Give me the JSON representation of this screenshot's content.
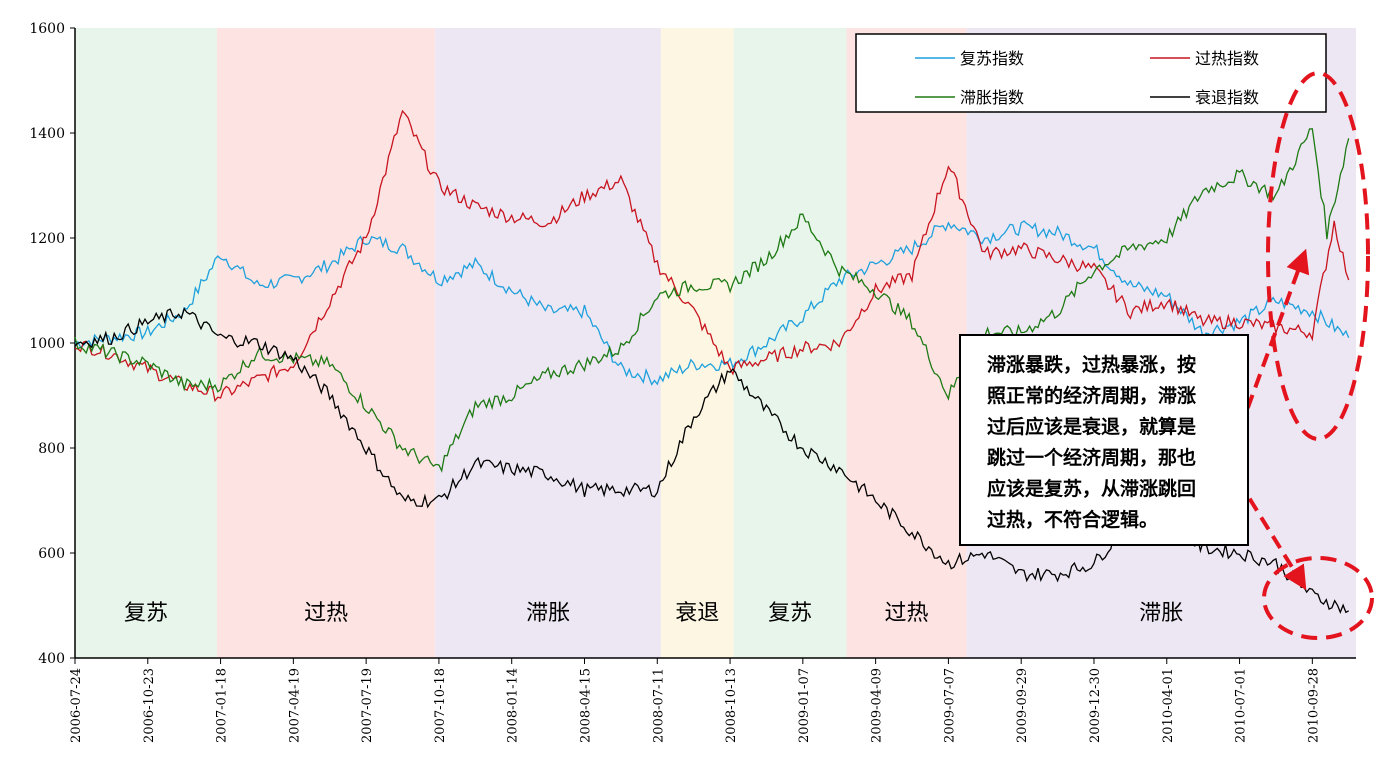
{
  "chart_data": {
    "type": "line",
    "title": "",
    "xlabel": "",
    "ylabel": "",
    "ylim": [
      400,
      1600
    ],
    "yticks": [
      400,
      600,
      800,
      1000,
      1200,
      1400,
      1600
    ],
    "xticks": [
      "2006-07-24",
      "2006-10-23",
      "2007-01-18",
      "2007-04-19",
      "2007-07-19",
      "2007-10-18",
      "2008-01-14",
      "2008-04-15",
      "2008-07-11",
      "2008-10-13",
      "2009-01-07",
      "2009-04-09",
      "2009-07-07",
      "2009-09-29",
      "2009-12-30",
      "2010-04-01",
      "2010-07-01",
      "2010-09-28"
    ],
    "legend": {
      "placement": "top-right",
      "entries": [
        "复苏指数",
        "过热指数",
        "滞胀指数",
        "衰退指数"
      ]
    },
    "phases": [
      {
        "label": "复苏",
        "start": 0,
        "end": 1.95,
        "color": "#e7f5ea"
      },
      {
        "label": "过热",
        "start": 1.95,
        "end": 4.95,
        "color": "#fde4e3"
      },
      {
        "label": "滞胀",
        "start": 4.95,
        "end": 8.05,
        "color": "#ede7f3"
      },
      {
        "label": "衰退",
        "start": 8.05,
        "end": 9.05,
        "color": "#fdf6e2"
      },
      {
        "label": "复苏",
        "start": 9.05,
        "end": 10.6,
        "color": "#e7f5ea"
      },
      {
        "label": "过热",
        "start": 10.6,
        "end": 12.25,
        "color": "#fde4e3"
      },
      {
        "label": "滞胀",
        "start": 12.25,
        "end": 17.6,
        "color": "#ede7f3"
      }
    ],
    "series": [
      {
        "name": "复苏指数",
        "color": "#1ea0dc",
        "x": [
          0,
          0.5,
          1,
          1.5,
          2,
          2.5,
          3,
          3.5,
          4,
          4.5,
          5,
          5.5,
          6,
          6.5,
          7,
          7.5,
          8,
          8.5,
          9,
          9.5,
          10,
          10.5,
          11,
          11.5,
          12,
          12.5,
          13,
          13.5,
          14,
          14.5,
          15,
          15.5,
          16,
          16.5,
          17,
          17.5
        ],
        "values": [
          1000,
          1010,
          1020,
          1060,
          1170,
          1110,
          1120,
          1150,
          1200,
          1180,
          1120,
          1150,
          1100,
          1060,
          1060,
          950,
          930,
          960,
          960,
          1000,
          1050,
          1120,
          1150,
          1180,
          1230,
          1200,
          1220,
          1210,
          1180,
          1110,
          1090,
          1020,
          1040,
          1080,
          1060,
          1010
        ]
      },
      {
        "name": "过热指数",
        "color": "#c8141e",
        "x": [
          0,
          0.5,
          1,
          1.5,
          2,
          2.5,
          3,
          3.5,
          4,
          4.5,
          5,
          5.5,
          6,
          6.5,
          7,
          7.5,
          8,
          8.5,
          9,
          9.5,
          10,
          10.5,
          11,
          11.5,
          12,
          12.5,
          13,
          13.5,
          14,
          14.5,
          15,
          15.5,
          16,
          16.5,
          17,
          17.3,
          17.5
        ],
        "values": [
          1000,
          980,
          950,
          920,
          900,
          930,
          960,
          1080,
          1200,
          1440,
          1300,
          1260,
          1240,
          1230,
          1280,
          1310,
          1150,
          1060,
          950,
          970,
          990,
          1000,
          1100,
          1130,
          1340,
          1170,
          1180,
          1160,
          1140,
          1060,
          1080,
          1040,
          1040,
          1030,
          1020,
          1230,
          1120
        ]
      },
      {
        "name": "滞胀指数",
        "color": "#1e7a14",
        "x": [
          0,
          0.5,
          1,
          1.5,
          2,
          2.5,
          3,
          3.5,
          4,
          4.5,
          5,
          5.5,
          6,
          6.5,
          7,
          7.5,
          8,
          8.5,
          9,
          9.5,
          10,
          10.5,
          11,
          11.5,
          12,
          12.5,
          13,
          13.5,
          14,
          14.5,
          15,
          15.5,
          16,
          16.5,
          17,
          17.2,
          17.5
        ],
        "values": [
          1000,
          980,
          960,
          920,
          920,
          980,
          970,
          960,
          880,
          800,
          760,
          880,
          900,
          940,
          960,
          990,
          1090,
          1110,
          1110,
          1160,
          1240,
          1140,
          1100,
          1040,
          900,
          1020,
          1020,
          1060,
          1140,
          1180,
          1200,
          1290,
          1320,
          1280,
          1410,
          1210,
          1390
        ]
      },
      {
        "name": "衰退指数",
        "color": "#000000",
        "x": [
          0,
          0.5,
          1,
          1.5,
          2,
          2.5,
          3,
          3.5,
          4,
          4.5,
          5,
          5.5,
          6,
          6.5,
          7,
          7.5,
          8,
          8.5,
          9,
          9.5,
          10,
          10.5,
          11,
          11.5,
          12,
          12.5,
          13,
          13.5,
          14,
          14.5,
          15,
          15.5,
          16,
          16.5,
          17,
          17.5
        ],
        "values": [
          1000,
          1010,
          1040,
          1060,
          1010,
          1000,
          970,
          900,
          800,
          700,
          700,
          770,
          760,
          750,
          720,
          720,
          720,
          860,
          950,
          870,
          800,
          760,
          700,
          640,
          580,
          600,
          560,
          560,
          580,
          660,
          650,
          610,
          600,
          580,
          520,
          490
        ]
      }
    ],
    "phase_labels": [
      "复苏",
      "过热",
      "滞胀",
      "衰退",
      "复苏",
      "过热",
      "滞胀"
    ],
    "annotation": {
      "lines": [
        "滞涨暴跌，过热暴涨，按",
        "照正常的经济周期，滞涨",
        "过后应该是衰退，就算是",
        "跳过一个经济周期，那也",
        "应该是复苏，从滞涨跳回",
        "过热，不符合逻辑。"
      ],
      "color": "#e3141e"
    }
  }
}
